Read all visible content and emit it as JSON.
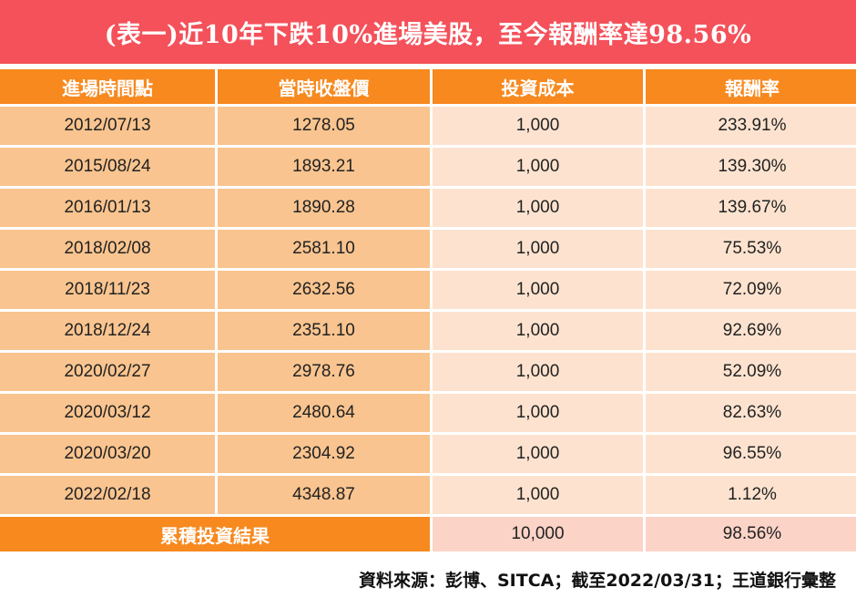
{
  "title": "(表一)近10年下跌10%進場美股，至今報酬率達98.56%",
  "headers": {
    "entry_date": "進場時間點",
    "close_price": "當時收盤價",
    "cost": "投資成本",
    "return": "報酬率"
  },
  "rows": [
    {
      "date": "2012/07/13",
      "close": "1278.05",
      "cost": "1,000",
      "return": "233.91%"
    },
    {
      "date": "2015/08/24",
      "close": "1893.21",
      "cost": "1,000",
      "return": "139.30%"
    },
    {
      "date": "2016/01/13",
      "close": "1890.28",
      "cost": "1,000",
      "return": "139.67%"
    },
    {
      "date": "2018/02/08",
      "close": "2581.10",
      "cost": "1,000",
      "return": "75.53%"
    },
    {
      "date": "2018/11/23",
      "close": "2632.56",
      "cost": "1,000",
      "return": "72.09%"
    },
    {
      "date": "2018/12/24",
      "close": "2351.10",
      "cost": "1,000",
      "return": "92.69%"
    },
    {
      "date": "2020/02/27",
      "close": "2978.76",
      "cost": "1,000",
      "return": "52.09%"
    },
    {
      "date": "2020/03/12",
      "close": "2480.64",
      "cost": "1,000",
      "return": "82.63%"
    },
    {
      "date": "2020/03/20",
      "close": "2304.92",
      "cost": "1,000",
      "return": "96.55%"
    },
    {
      "date": "2022/02/18",
      "close": "4348.87",
      "cost": "1,000",
      "return": "1.12%"
    }
  ],
  "total": {
    "label": "累積投資結果",
    "cost": "10,000",
    "return": "98.56%"
  },
  "source": "資料來源：彭博、SITCA；截至2022/03/31；王道銀行彙整",
  "colors": {
    "title_bg": "#f4515a",
    "header_bg": "#f7891f",
    "left_cells": "#f9c48f",
    "right_cells": "#fde3cf",
    "total_right_cells": "#fcd3c7"
  }
}
